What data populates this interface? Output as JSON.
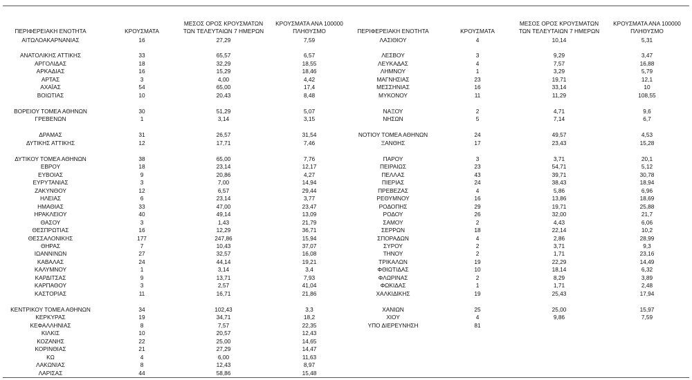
{
  "left": {
    "header": [
      [
        "ΠΕΡΙΦΕΡΕΙΑΚΗ ΕΝΟΤΗΤΑ"
      ],
      [
        "ΚΡΟΥΣΜΑΤΑ"
      ],
      [
        "ΜΕΣΟΣ ΟΡΟΣ ΚΡΟΥΣΜΑΤΩΝ",
        "ΤΩΝ ΤΕΛΕΥΤΑΙΩΝ 7 ΗΜΕΡΩΝ"
      ],
      [
        "ΚΡΟΥΣΜΑΤΑ ΑΝΑ 100000",
        "ΠΛΗΘΥΣΜΟ"
      ]
    ],
    "groups": [
      [
        [
          "ΑΙΤΩΛΟΑΚΑΡΝΑΝΙΑΣ",
          "16",
          "27,29",
          "7,59"
        ]
      ],
      [
        [
          "ΑΝΑΤΟΛΙΚΗΣ ΑΤΤΙΚΗΣ",
          "33",
          "65,57",
          "6,57"
        ],
        [
          "ΑΡΓΟΛΙΔΑΣ",
          "18",
          "32,29",
          "18,55"
        ],
        [
          "ΑΡΚΑΔΙΑΣ",
          "16",
          "15,29",
          "18,46"
        ],
        [
          "ΑΡΤΑΣ",
          "3",
          "4,00",
          "4,42"
        ],
        [
          "ΑΧΑΪΑΣ",
          "54",
          "65,00",
          "17,4"
        ],
        [
          "ΒΟΙΩΤΙΑΣ",
          "10",
          "20,43",
          "8,48"
        ]
      ],
      [
        [
          "ΒΟΡΕΙΟΥ ΤΟΜΕΑ ΑΘΗΝΩΝ",
          "30",
          "51,29",
          "5,07"
        ],
        [
          "ΓΡΕΒΕΝΩΝ",
          "1",
          "3,14",
          "3,15"
        ]
      ],
      [
        [
          "ΔΡΑΜΑΣ",
          "31",
          "26,57",
          "31,54"
        ],
        [
          "ΔΥΤΙΚΗΣ ΑΤΤΙΚΗΣ",
          "12",
          "17,71",
          "7,46"
        ]
      ],
      [
        [
          "ΔΥΤΙΚΟΥ ΤΟΜΕΑ ΑΘΗΝΩΝ",
          "38",
          "65,00",
          "7,76"
        ],
        [
          "ΕΒΡΟΥ",
          "18",
          "23,14",
          "12,17"
        ],
        [
          "ΕΥΒΟΙΑΣ",
          "9",
          "20,86",
          "4,27"
        ],
        [
          "ΕΥΡΥΤΑΝΙΑΣ",
          "3",
          "7,00",
          "14,94"
        ],
        [
          "ΖΑΚΥΝΘΟΥ",
          "12",
          "6,57",
          "29,44"
        ],
        [
          "ΗΛΕΙΑΣ",
          "6",
          "23,14",
          "3,77"
        ],
        [
          "ΗΜΑΘΙΑΣ",
          "33",
          "47,00",
          "23,47"
        ],
        [
          "ΗΡΑΚΛΕΙΟΥ",
          "40",
          "49,14",
          "13,09"
        ],
        [
          "ΘΑΣΟΥ",
          "3",
          "1,43",
          "21,79"
        ],
        [
          "ΘΕΣΠΡΩΤΙΑΣ",
          "16",
          "12,29",
          "36,71"
        ],
        [
          "ΘΕΣΣΑΛΟΝΙΚΗΣ",
          "177",
          "247,86",
          "15,94"
        ],
        [
          "ΘΗΡΑΣ",
          "7",
          "10,43",
          "37,07"
        ],
        [
          "ΙΩΑΝΝΙΝΩΝ",
          "27",
          "32,57",
          "16,08"
        ],
        [
          "ΚΑΒΑΛΑΣ",
          "24",
          "44,14",
          "19,21"
        ],
        [
          "ΚΑΛΥΜΝΟΥ",
          "1",
          "3,14",
          "3,4"
        ],
        [
          "ΚΑΡΔΙΤΣΑΣ",
          "9",
          "13,71",
          "7,93"
        ],
        [
          "ΚΑΡΠΑΘΟΥ",
          "3",
          "2,57",
          "41,04"
        ],
        [
          "ΚΑΣΤΟΡΙΑΣ",
          "11",
          "16,71",
          "21,86"
        ]
      ],
      [
        [
          "ΚΕΝΤΡΙΚΟΥ ΤΟΜΕΑ ΑΘΗΝΩΝ",
          "34",
          "102,43",
          "3,3"
        ],
        [
          "ΚΕΡΚΥΡΑΣ",
          "19",
          "34,71",
          "18,2"
        ],
        [
          "ΚΕΦΑΛΛΗΝΙΑΣ",
          "8",
          "7,57",
          "22,35"
        ],
        [
          "ΚΙΛΚΙΣ",
          "10",
          "20,57",
          "12,43"
        ],
        [
          "ΚΟΖΑΝΗΣ",
          "22",
          "25,00",
          "14,65"
        ],
        [
          "ΚΟΡΙΝΘΙΑΣ",
          "21",
          "27,29",
          "14,47"
        ],
        [
          "ΚΩ",
          "4",
          "6,00",
          "11,63"
        ],
        [
          "ΛΑΚΩΝΙΑΣ",
          "8",
          "12,43",
          "8,97"
        ],
        [
          "ΛΑΡΙΣΑΣ",
          "44",
          "58,86",
          "15,48"
        ]
      ]
    ]
  },
  "right": {
    "header": [
      [
        "ΠΕΡΙΦΕΡΕΙΑΚΗ ΕΝΟΤΗΤΑ"
      ],
      [
        "ΚΡΟΥΣΜΑΤΑ"
      ],
      [
        "ΜΕΣΟΣ ΟΡΟΣ ΚΡΟΥΣΜΑΤΩΝ",
        "ΤΩΝ ΤΕΛΕΥΤΑΙΩΝ 7 ΗΜΕΡΩΝ"
      ],
      [
        "ΚΡΟΥΣΜΑΤΑ ΑΝΑ 100000",
        "ΠΛΗΘΥΣΜΟ"
      ]
    ],
    "groups": [
      [
        [
          "ΛΑΣΙΘΙΟΥ",
          "4",
          "10,14",
          "5,31"
        ]
      ],
      [
        [
          "ΛΕΣΒΟΥ",
          "3",
          "9,29",
          "3,47"
        ],
        [
          "ΛΕΥΚΑΔΑΣ",
          "4",
          "7,57",
          "16,88"
        ],
        [
          "ΛΗΜΝΟΥ",
          "1",
          "3,29",
          "5,79"
        ],
        [
          "ΜΑΓΝΗΣΙΑΣ",
          "23",
          "19,71",
          "12,1"
        ],
        [
          "ΜΕΣΣΗΝΙΑΣ",
          "16",
          "33,14",
          "10"
        ],
        [
          "ΜΥΚΟΝΟΥ",
          "11",
          "11,29",
          "108,55"
        ]
      ],
      [
        [
          "ΝΑΞΟΥ",
          "2",
          "4,71",
          "9,6"
        ],
        [
          "ΝΗΣΩΝ",
          "5",
          "7,14",
          "6,7"
        ]
      ],
      [
        [
          "ΝΟΤΙΟΥ ΤΟΜΕΑ ΑΘΗΝΩΝ",
          "24",
          "49,57",
          "4,53"
        ],
        [
          "ΞΑΝΘΗΣ",
          "17",
          "23,43",
          "15,28"
        ]
      ],
      [
        [
          "ΠΑΡΟΥ",
          "3",
          "3,71",
          "20,1"
        ],
        [
          "ΠΕΙΡΑΙΩΣ",
          "23",
          "54,71",
          "5,12"
        ],
        [
          "ΠΕΛΛΑΣ",
          "43",
          "39,71",
          "30,78"
        ],
        [
          "ΠΙΕΡΙΑΣ",
          "24",
          "38,43",
          "18,94"
        ],
        [
          "ΠΡΕΒΕΖΑΣ",
          "4",
          "5,86",
          "6,96"
        ],
        [
          "ΡΕΘΥΜΝΟΥ",
          "16",
          "13,86",
          "18,69"
        ],
        [
          "ΡΟΔΟΠΗΣ",
          "29",
          "19,71",
          "25,88"
        ],
        [
          "ΡΟΔΟΥ",
          "26",
          "32,00",
          "21,7"
        ],
        [
          "ΣΑΜΟΥ",
          "2",
          "4,43",
          "6,06"
        ],
        [
          "ΣΕΡΡΩΝ",
          "18",
          "22,14",
          "10,2"
        ],
        [
          "ΣΠΟΡΑΔΩΝ",
          "4",
          "2,86",
          "28,99"
        ],
        [
          "ΣΥΡΟΥ",
          "2",
          "3,71",
          "9,3"
        ],
        [
          "ΤΗΝΟΥ",
          "2",
          "1,71",
          "23,16"
        ],
        [
          "ΤΡΙΚΑΛΩΝ",
          "19",
          "22,29",
          "14,49"
        ],
        [
          "ΦΘΙΩΤΙΔΑΣ",
          "10",
          "18,14",
          "6,32"
        ],
        [
          "ΦΛΩΡΙΝΑΣ",
          "2",
          "8,29",
          "3,89"
        ],
        [
          "ΦΩΚΙΔΑΣ",
          "1",
          "1,71",
          "2,48"
        ],
        [
          "ΧΑΛΚΙΔΙΚΗΣ",
          "19",
          "25,43",
          "17,94"
        ]
      ],
      [
        [
          "ΧΑΝΙΩΝ",
          "25",
          "25,00",
          "15,97"
        ],
        [
          "ΧΙΟΥ",
          "4",
          "9,86",
          "7,59"
        ],
        [
          "ΥΠΟ ΔΙΕΡΕΥΝΗΣΗ",
          "81"
        ]
      ]
    ]
  }
}
